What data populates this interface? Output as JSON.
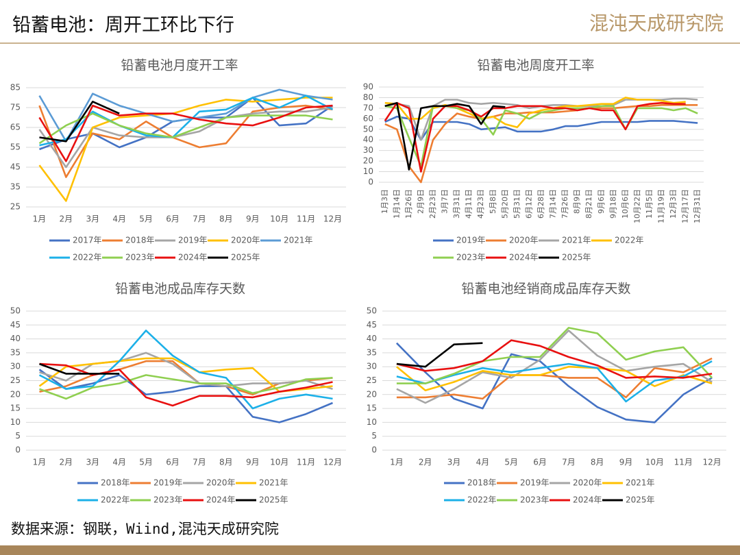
{
  "header": {
    "title": "铅蓄电池：周开工环比下行",
    "logo": "混沌天成研究院"
  },
  "footer": {
    "source": "数据来源：钢联，Wiind,混沌天成研究院"
  },
  "chart_data": [
    {
      "type": "line",
      "title": "铅蓄电池月度开工率",
      "categories": [
        "1月",
        "2月",
        "3月",
        "4月",
        "5月",
        "6月",
        "7月",
        "8月",
        "9月",
        "10月",
        "11月",
        "12月"
      ],
      "ylim": [
        25,
        85
      ],
      "yticks": [
        25,
        35,
        45,
        55,
        65,
        75,
        85
      ],
      "grid": true,
      "series": [
        {
          "name": "2017年",
          "color": "#4472c4",
          "values": [
            54,
            59,
            62,
            55,
            60,
            68,
            70,
            70,
            80,
            66,
            67,
            76
          ]
        },
        {
          "name": "2018年",
          "color": "#ed7d31",
          "values": [
            76,
            40,
            62,
            59,
            68,
            60,
            55,
            57,
            73,
            75,
            76,
            74
          ]
        },
        {
          "name": "2019年",
          "color": "#a5a5a5",
          "values": [
            64,
            45,
            65,
            61,
            60,
            60,
            63,
            70,
            72,
            73,
            73,
            75
          ]
        },
        {
          "name": "2020年",
          "color": "#ffc000",
          "values": [
            46,
            28,
            65,
            70,
            71,
            72,
            76,
            79,
            78,
            79,
            80,
            80
          ]
        },
        {
          "name": "2021年",
          "color": "#5b9bd5",
          "values": [
            81,
            58,
            82,
            76,
            72,
            68,
            70,
            72,
            80,
            84,
            81,
            79
          ]
        },
        {
          "name": "2022年",
          "color": "#1cb0e8",
          "values": [
            56,
            59,
            73,
            66,
            61,
            60,
            73,
            74,
            80,
            75,
            81,
            74
          ]
        },
        {
          "name": "2023年",
          "color": "#8fcf50",
          "values": [
            57,
            66,
            72,
            66,
            62,
            60,
            65,
            70,
            71,
            71,
            71,
            69
          ]
        },
        {
          "name": "2024年",
          "color": "#e81010",
          "values": [
            70,
            48,
            76,
            71,
            72,
            72,
            69,
            67,
            66,
            70,
            75,
            76
          ]
        },
        {
          "name": "2025年",
          "color": "#000000",
          "values": [
            60,
            58,
            78,
            72,
            null,
            null,
            null,
            null,
            null,
            null,
            null,
            null
          ]
        }
      ]
    },
    {
      "type": "line",
      "title": "铅蓄电池周度开工率",
      "categories": [
        "1月3日",
        "1月14日",
        "1月26日",
        "2月9日",
        "2月23日",
        "3月7日",
        "3月31日",
        "4月11日",
        "4月23日",
        "5月8日",
        "5月20日",
        "5月31日",
        "6月12日",
        "6月28日",
        "7月14日",
        "7月26日",
        "8月9日",
        "8月21日",
        "9月6日",
        "9月18日",
        "10月6日",
        "10月22日",
        "11月5日",
        "11月19日",
        "12月3日",
        "12月17日",
        "12月31日"
      ],
      "ylim": [
        0,
        90
      ],
      "yticks": [
        0,
        10,
        20,
        30,
        40,
        50,
        60,
        70,
        80,
        90
      ],
      "grid": true,
      "series": [
        {
          "name": "2019年",
          "color": "#4472c4",
          "values": [
            57,
            62,
            60,
            40,
            57,
            57,
            57,
            55,
            50,
            51,
            52,
            48,
            48,
            48,
            50,
            53,
            53,
            55,
            57,
            57,
            57,
            57,
            58,
            58,
            58,
            57,
            56
          ]
        },
        {
          "name": "2020年",
          "color": "#ed7d31",
          "values": [
            55,
            50,
            15,
            0,
            40,
            55,
            65,
            62,
            60,
            62,
            65,
            65,
            66,
            66,
            66,
            67,
            68,
            70,
            70,
            70,
            71,
            72,
            72,
            73,
            73,
            73,
            73
          ]
        },
        {
          "name": "2021年",
          "color": "#a5a5a5",
          "values": [
            72,
            74,
            72,
            40,
            72,
            78,
            78,
            75,
            74,
            75,
            74,
            73,
            70,
            72,
            73,
            73,
            72,
            72,
            72,
            73,
            78,
            78,
            78,
            78,
            79,
            79,
            78
          ]
        },
        {
          "name": "2022年",
          "color": "#ffc000",
          "values": [
            75,
            74,
            60,
            60,
            70,
            73,
            70,
            65,
            60,
            62,
            55,
            52,
            65,
            68,
            70,
            72,
            72,
            73,
            74,
            74,
            80,
            78,
            78,
            77,
            75,
            76,
            null
          ]
        },
        {
          "name": "2023年",
          "color": "#8fcf50",
          "values": [
            72,
            70,
            42,
            15,
            72,
            72,
            70,
            68,
            60,
            45,
            68,
            65,
            60,
            66,
            68,
            70,
            70,
            70,
            72,
            72,
            50,
            70,
            70,
            70,
            68,
            70,
            65
          ]
        },
        {
          "name": "2024年",
          "color": "#e81010",
          "values": [
            58,
            75,
            70,
            10,
            60,
            72,
            72,
            68,
            62,
            70,
            70,
            72,
            72,
            72,
            70,
            70,
            68,
            70,
            68,
            68,
            50,
            72,
            74,
            75,
            74,
            74,
            null
          ]
        },
        {
          "name": "2025年",
          "color": "#000000",
          "values": [
            72,
            75,
            12,
            70,
            72,
            72,
            74,
            72,
            55,
            72,
            71,
            null,
            null,
            null,
            null,
            null,
            null,
            null,
            null,
            null,
            null,
            null,
            null,
            null,
            null,
            null,
            null
          ]
        }
      ]
    },
    {
      "type": "line",
      "title": "铅蓄电池成品库存天数",
      "categories": [
        "1月",
        "2月",
        "3月",
        "4月",
        "5月",
        "6月",
        "7月",
        "8月",
        "9月",
        "10月",
        "11月",
        "12月"
      ],
      "ylim": [
        0,
        50
      ],
      "yticks": [
        0,
        5,
        10,
        15,
        20,
        25,
        30,
        35,
        40,
        45,
        50
      ],
      "grid": true,
      "series": [
        {
          "name": "2018年",
          "color": "#4472c4",
          "values": [
            29,
            22,
            24,
            27,
            20,
            21,
            23,
            23,
            12,
            10,
            13,
            17
          ]
        },
        {
          "name": "2019年",
          "color": "#ed7d31",
          "values": [
            21,
            23,
            27,
            29,
            32,
            32,
            24,
            23,
            20,
            24,
            25,
            26
          ]
        },
        {
          "name": "2020年",
          "color": "#a5a5a5",
          "values": [
            28,
            25,
            31,
            32,
            35,
            31,
            24,
            23,
            24,
            24,
            25,
            22
          ]
        },
        {
          "name": "2021年",
          "color": "#ffc000",
          "values": [
            23,
            30,
            31,
            32,
            33,
            33,
            28,
            29,
            29.5,
            21,
            22,
            23
          ]
        },
        {
          "name": "2022年",
          "color": "#1cb0e8",
          "values": [
            27,
            22,
            23,
            32,
            43,
            34,
            28,
            26,
            15,
            18.5,
            20,
            18.5
          ]
        },
        {
          "name": "2023年",
          "color": "#8fcf50",
          "values": [
            22,
            18.5,
            22.5,
            24,
            27,
            25.5,
            24,
            24,
            20.5,
            22.5,
            25.5,
            26
          ]
        },
        {
          "name": "2024年",
          "color": "#e81010",
          "values": [
            31,
            30.5,
            27,
            29,
            19,
            16,
            19.5,
            19.5,
            19,
            21,
            22.5,
            24.5
          ]
        },
        {
          "name": "2025年",
          "color": "#000000",
          "values": [
            31,
            27.5,
            27.5,
            27.5,
            null,
            null,
            null,
            null,
            null,
            null,
            null,
            null
          ]
        }
      ]
    },
    {
      "type": "line",
      "title": "铅蓄电池经销商成品库存天数",
      "categories": [
        "1月",
        "2月",
        "3月",
        "4月",
        "5月",
        "6月",
        "7月",
        "8月",
        "9月",
        "10月",
        "11月",
        "12月"
      ],
      "ylim": [
        0,
        50
      ],
      "yticks": [
        0,
        5,
        10,
        15,
        20,
        25,
        30,
        35,
        40,
        45,
        50
      ],
      "grid": true,
      "series": [
        {
          "name": "2018年",
          "color": "#4472c4",
          "values": [
            38.5,
            28,
            18.5,
            15,
            34.5,
            32,
            23,
            15.5,
            11,
            10,
            20,
            26
          ]
        },
        {
          "name": "2019年",
          "color": "#ed7d31",
          "values": [
            19,
            19,
            20,
            18.5,
            27,
            27,
            26,
            26,
            19,
            29.5,
            28,
            33
          ]
        },
        {
          "name": "2020年",
          "color": "#a5a5a5",
          "values": [
            22,
            17,
            22,
            28,
            26,
            32.5,
            43,
            34,
            28.5,
            30,
            31,
            24.5
          ]
        },
        {
          "name": "2021年",
          "color": "#ffc000",
          "values": [
            30,
            21.5,
            24.5,
            28.5,
            27,
            27,
            30,
            29.5,
            28.5,
            23,
            27,
            24
          ]
        },
        {
          "name": "2022年",
          "color": "#1cb0e8",
          "values": [
            26.5,
            24,
            27,
            29.5,
            28,
            29.5,
            31,
            29.5,
            17.5,
            25,
            26.5,
            32
          ]
        },
        {
          "name": "2023年",
          "color": "#8fcf50",
          "values": [
            24,
            24,
            27.5,
            32,
            33.5,
            33.5,
            44,
            42,
            32.5,
            35.5,
            37,
            26
          ]
        },
        {
          "name": "2024年",
          "color": "#e81010",
          "values": [
            31,
            28.5,
            29.5,
            32,
            39.5,
            37.5,
            33.5,
            30.5,
            26,
            26.5,
            26,
            27.5
          ]
        },
        {
          "name": "2025年",
          "color": "#000000",
          "values": [
            31,
            30,
            38,
            38.5,
            null,
            null,
            null,
            null,
            null,
            null,
            null,
            null
          ]
        }
      ]
    }
  ]
}
